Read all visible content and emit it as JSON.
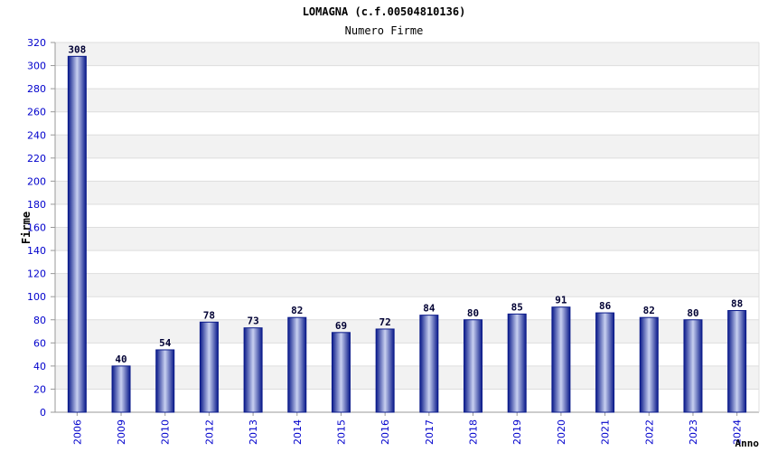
{
  "chart_data": {
    "type": "bar",
    "title": "LOMAGNA (c.f.00504810136)",
    "subtitle": "Numero Firme",
    "xlabel": "Anno",
    "ylabel": "Firme",
    "ylim": [
      0,
      320
    ],
    "ytick_step": 20,
    "grid": true,
    "categories": [
      "2006",
      "2009",
      "2010",
      "2012",
      "2013",
      "2014",
      "2015",
      "2016",
      "2017",
      "2018",
      "2019",
      "2020",
      "2021",
      "2022",
      "2023",
      "2024"
    ],
    "values": [
      308,
      40,
      54,
      78,
      73,
      82,
      69,
      72,
      84,
      80,
      85,
      91,
      86,
      82,
      80,
      88
    ],
    "colors": {
      "bar_dark": "#0a1a8a",
      "bar_light": "#c8d0f0",
      "tick_text": "#0000cc",
      "label_text": "#000033",
      "band": "#f2f2f2"
    }
  }
}
